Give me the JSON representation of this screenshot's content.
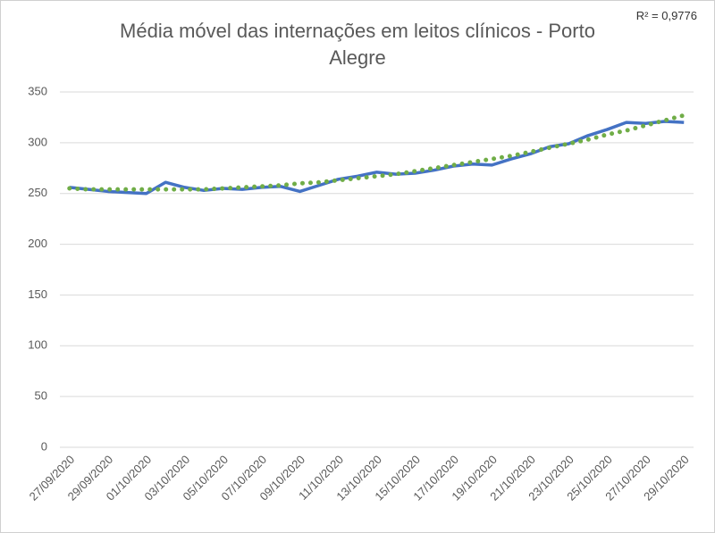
{
  "chart_data": {
    "type": "line",
    "title": "Média móvel das internações em leitos clínicos - Porto Alegre",
    "annotation": "R² = 0,9776",
    "categories": [
      "27/09/2020",
      null,
      "29/09/2020",
      null,
      "01/10/2020",
      null,
      "03/10/2020",
      null,
      "05/10/2020",
      null,
      "07/10/2020",
      null,
      "09/10/2020",
      null,
      "11/10/2020",
      null,
      "13/10/2020",
      null,
      "15/10/2020",
      null,
      "17/10/2020",
      null,
      "19/10/2020",
      null,
      "21/10/2020",
      null,
      "23/10/2020",
      null,
      "25/10/2020",
      null,
      "27/10/2020",
      null,
      "29/10/2020"
    ],
    "series": [
      {
        "color": "#4472c4",
        "dash": "solid",
        "values": [
          256,
          254,
          252,
          251,
          250,
          261,
          256,
          253,
          255,
          254,
          256,
          257,
          252,
          258,
          264,
          267,
          271,
          269,
          270,
          273,
          277,
          279,
          278,
          284,
          289,
          296,
          299,
          307,
          313,
          320,
          319,
          321,
          320
        ]
      },
      {
        "color": "#70ad47",
        "dash": "dotted",
        "values": [
          255,
          254,
          254,
          254,
          254,
          254,
          254,
          254,
          255,
          256,
          257,
          258,
          260,
          261,
          263,
          265,
          267,
          269,
          272,
          275,
          278,
          281,
          284,
          287,
          291,
          295,
          299,
          303,
          308,
          312,
          317,
          322,
          327
        ]
      }
    ],
    "ylim": [
      0,
      350
    ],
    "yticks": [
      0,
      50,
      100,
      150,
      200,
      250,
      300,
      350
    ],
    "grid": true
  }
}
